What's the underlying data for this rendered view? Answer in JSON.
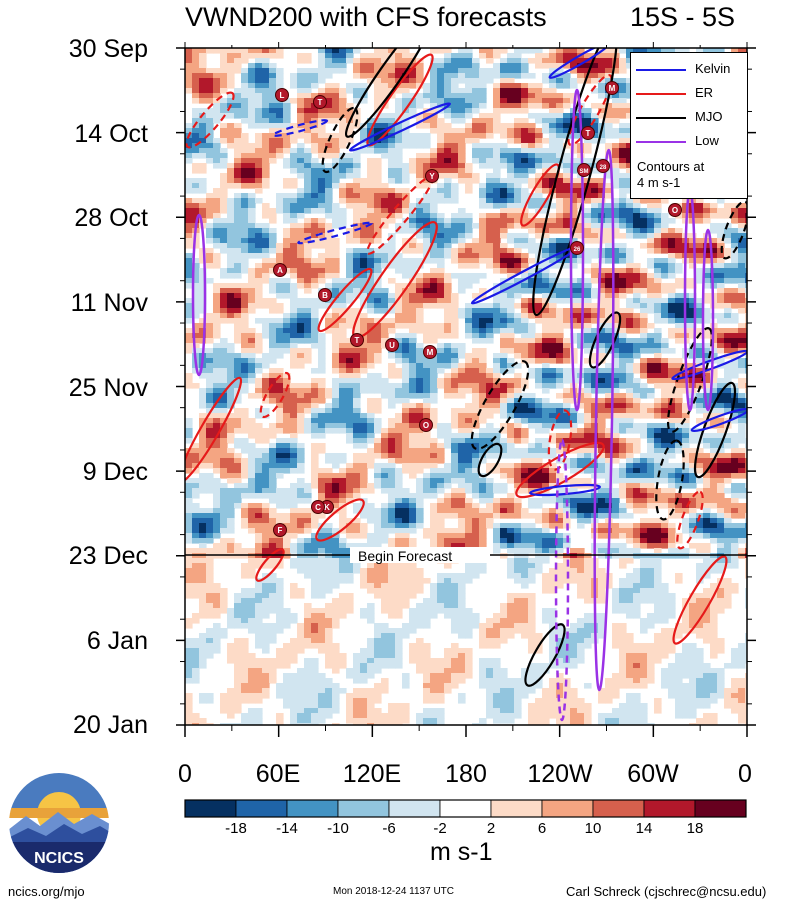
{
  "chart_data": {
    "type": "heatmap",
    "title": "VWND200 with CFS forecasts",
    "subtitle": "15S - 5S",
    "x_tick_labels": [
      "0",
      "60E",
      "120E",
      "180",
      "120W",
      "60W",
      "0"
    ],
    "x_range_deg": [
      0,
      360
    ],
    "y_tick_labels": [
      "30 Sep",
      "14 Oct",
      "28 Oct",
      "11 Nov",
      "25 Nov",
      "9 Dec",
      "23 Dec",
      "6 Jan",
      "20 Jan"
    ],
    "time_range": [
      "30 Sep",
      "20 Jan"
    ],
    "forecast_start": "23 Dec",
    "forecast_label": "Begin Forecast",
    "colorbar": {
      "ticks": [
        "-18",
        "-14",
        "-10",
        "-6",
        "-2",
        "2",
        "6",
        "10",
        "14",
        "18"
      ],
      "colors": [
        "#053061",
        "#1f64a8",
        "#4393c3",
        "#92c5de",
        "#d1e5f0",
        "#ffffff",
        "#fddbc7",
        "#f4a582",
        "#d6604d",
        "#b2182b",
        "#67001f"
      ],
      "units": "m s-1"
    },
    "legend": {
      "items": [
        {
          "label": "Kelvin",
          "color": "#1a1ae6"
        },
        {
          "label": "ER",
          "color": "#e61a1a"
        },
        {
          "label": "MJO",
          "color": "#000000"
        },
        {
          "label": "Low",
          "color": "#9a32e6"
        }
      ],
      "note": [
        "Contours at",
        "4 m s-1"
      ]
    },
    "storm_markers": [
      "L",
      "T",
      "Y",
      "A",
      "B",
      "T",
      "U",
      "M",
      "O",
      "F",
      "K",
      "C",
      "M",
      "T",
      "SM",
      "28",
      "26",
      "O"
    ]
  },
  "footer": {
    "site": "ncics.org/mjo",
    "timestamp": "Mon 2018-12-24 1137 UTC",
    "author": "Carl Schreck (cjschrec@ncsu.edu)",
    "logo_text": "NCICS"
  }
}
